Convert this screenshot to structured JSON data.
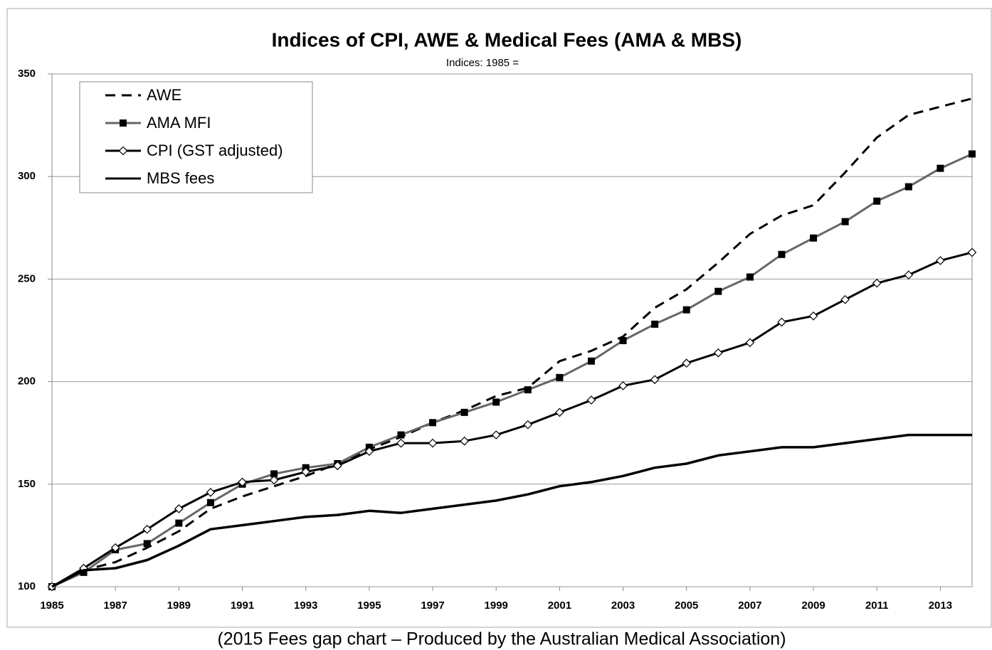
{
  "chart_data": {
    "type": "line",
    "title": "Indices of CPI, AWE & Medical Fees (AMA & MBS)",
    "subtitle": "Indices: 1985 =",
    "caption": "(2015 Fees gap chart – Produced by the Australian Medical Association)",
    "x": [
      1985,
      1986,
      1987,
      1988,
      1989,
      1990,
      1991,
      1992,
      1993,
      1994,
      1995,
      1996,
      1997,
      1998,
      1999,
      2000,
      2001,
      2002,
      2003,
      2004,
      2005,
      2006,
      2007,
      2008,
      2009,
      2010,
      2011,
      2012,
      2013,
      2014
    ],
    "series": [
      {
        "name": "AWE",
        "color": "#000000",
        "dash": true,
        "marker": "none",
        "values": [
          100,
          108,
          112,
          119,
          127,
          138,
          144,
          149,
          154,
          160,
          167,
          173,
          180,
          186,
          193,
          197,
          210,
          215,
          222,
          236,
          245,
          258,
          272,
          281,
          286,
          302,
          319,
          330,
          334,
          338
        ]
      },
      {
        "name": "AMA MFI",
        "color": "#666666",
        "dash": false,
        "marker": "square",
        "values": [
          100,
          107,
          118,
          121,
          131,
          141,
          150,
          155,
          158,
          160,
          168,
          174,
          180,
          185,
          190,
          196,
          202,
          210,
          220,
          228,
          235,
          244,
          251,
          262,
          270,
          278,
          288,
          295,
          304,
          311
        ]
      },
      {
        "name": "CPI (GST adjusted)",
        "color": "#000000",
        "dash": false,
        "marker": "diamond",
        "values": [
          100,
          109,
          119,
          128,
          138,
          146,
          151,
          152,
          156,
          159,
          166,
          170,
          170,
          171,
          174,
          179,
          185,
          191,
          198,
          201,
          209,
          214,
          219,
          229,
          232,
          240,
          248,
          252,
          259,
          263
        ]
      },
      {
        "name": "MBS fees",
        "color": "#000000",
        "dash": false,
        "marker": "none",
        "values": [
          100,
          108,
          109,
          113,
          120,
          128,
          130,
          132,
          134,
          135,
          137,
          136,
          138,
          140,
          142,
          145,
          149,
          151,
          154,
          158,
          160,
          164,
          166,
          168,
          168,
          170,
          172,
          174,
          174,
          174
        ]
      }
    ],
    "xlim": [
      1985,
      2014
    ],
    "xticks": [
      1985,
      1987,
      1989,
      1991,
      1993,
      1995,
      1997,
      1999,
      2001,
      2003,
      2005,
      2007,
      2009,
      2011,
      2013
    ],
    "ylim": [
      100,
      350
    ],
    "yticks": [
      100,
      150,
      200,
      250,
      300,
      350
    ],
    "grid": true,
    "legend": "upper left"
  }
}
